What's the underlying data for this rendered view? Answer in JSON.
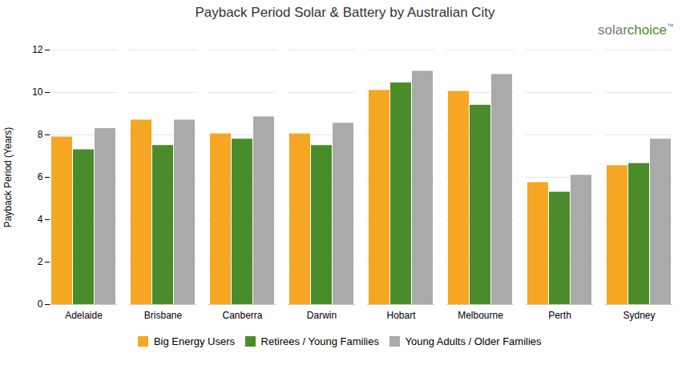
{
  "chart_data": {
    "type": "bar",
    "title": "Payback Period Solar & Battery by Australian City",
    "ylabel": "Payback Period (Years)",
    "categories": [
      "Adelaide",
      "Brisbane",
      "Canberra",
      "Darwin",
      "Hobart",
      "Melbourne",
      "Perth",
      "Sydney"
    ],
    "series": [
      {
        "name": "Big Energy Users",
        "color": "#F5A623",
        "values": [
          7.9,
          8.7,
          8.05,
          8.05,
          10.1,
          10.05,
          5.75,
          6.55
        ]
      },
      {
        "name": "Retirees / Young Families",
        "color": "#4A8C2A",
        "values": [
          7.3,
          7.5,
          7.8,
          7.5,
          10.45,
          9.4,
          5.3,
          6.65
        ]
      },
      {
        "name": "Young Adults / Older Families",
        "color": "#AAAAAA",
        "values": [
          8.3,
          8.7,
          8.85,
          8.55,
          11.0,
          10.85,
          6.1,
          7.8
        ]
      }
    ],
    "ylim": [
      0,
      12
    ],
    "yticks": [
      0,
      2,
      4,
      6,
      8,
      10,
      12
    ],
    "grid": true,
    "legend": "bottom",
    "annotations": [
      {
        "text": "solar",
        "color": "#777777"
      },
      {
        "text": "choice",
        "color": "#4A8C2A"
      },
      {
        "text": "™",
        "color": "#777777"
      }
    ]
  }
}
